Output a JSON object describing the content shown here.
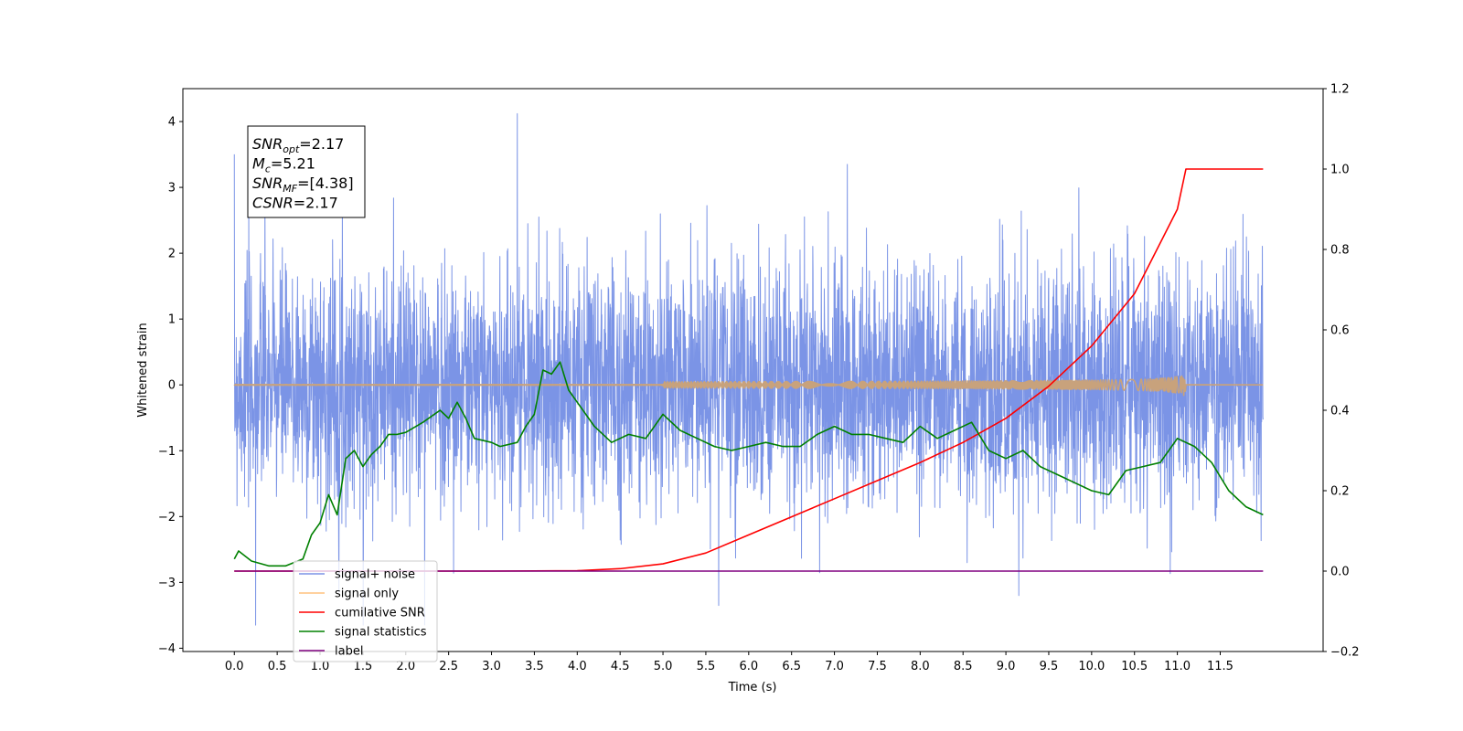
{
  "chart_data": {
    "type": "line",
    "title": "",
    "xlabel": "Time (s)",
    "ylabel": "Whitened strain",
    "y2label": "",
    "xlim": [
      -0.6,
      12.7
    ],
    "ylim": [
      -4.05,
      4.5
    ],
    "y2lim": [
      -0.2,
      1.2
    ],
    "xticks": [
      0.0,
      0.5,
      1.0,
      1.5,
      2.0,
      2.5,
      3.0,
      3.5,
      4.0,
      4.5,
      5.0,
      5.5,
      6.0,
      6.5,
      7.0,
      7.5,
      8.0,
      8.5,
      9.0,
      9.5,
      10.0,
      10.5,
      11.0,
      11.5
    ],
    "xtick_labels": [
      "0.0",
      "0.5",
      "1.0",
      "1.5",
      "2.0",
      "2.5",
      "3.0",
      "3.5",
      "4.0",
      "4.5",
      "5.0",
      "5.5",
      "6.0",
      "6.5",
      "7.0",
      "7.5",
      "8.0",
      "8.5",
      "9.0",
      "9.5",
      "10.0",
      "10.5",
      "11.0",
      "11.5"
    ],
    "yticks": [
      -4,
      -3,
      -2,
      -1,
      0,
      1,
      2,
      3,
      4
    ],
    "ytick_labels": [
      "−4",
      "−3",
      "−2",
      "−1",
      "0",
      "1",
      "2",
      "3",
      "4"
    ],
    "y2ticks": [
      -0.2,
      0.0,
      0.2,
      0.4,
      0.6,
      0.8,
      1.0,
      1.2
    ],
    "y2tick_labels": [
      "−0.2",
      "0.0",
      "0.2",
      "0.4",
      "0.6",
      "0.8",
      "1.0",
      "1.2"
    ],
    "grid": false,
    "legend_position": "lower-left",
    "series": [
      {
        "name": "signal+ noise",
        "color": "#7b94e6",
        "axis": "left",
        "kind": "noise",
        "x_range": [
          0.0,
          12.0
        ],
        "sigma": 0.9,
        "approx_min": -3.65,
        "approx_max": 4.12
      },
      {
        "name": "signal only",
        "color": "#ffc27f",
        "axis": "left",
        "kind": "chirp",
        "x_range": [
          0.0,
          11.1
        ],
        "peak_amplitude": 0.2
      },
      {
        "name": "cumilative SNR",
        "color": "#ff0000",
        "axis": "right",
        "x": [
          0.0,
          3.0,
          4.0,
          4.5,
          5.0,
          5.5,
          6.0,
          6.5,
          7.0,
          7.5,
          8.0,
          8.5,
          9.0,
          9.5,
          10.0,
          10.5,
          11.0,
          11.1,
          11.5,
          12.0
        ],
        "values": [
          0.0,
          0.0,
          0.001,
          0.006,
          0.018,
          0.045,
          0.09,
          0.135,
          0.18,
          0.225,
          0.27,
          0.32,
          0.38,
          0.46,
          0.56,
          0.69,
          0.9,
          1.0,
          1.0,
          1.0
        ]
      },
      {
        "name": "signal statistics",
        "color": "#008000",
        "axis": "right",
        "x": [
          0.0,
          0.05,
          0.2,
          0.4,
          0.6,
          0.8,
          0.9,
          1.0,
          1.1,
          1.2,
          1.3,
          1.4,
          1.5,
          1.6,
          1.7,
          1.8,
          1.9,
          2.0,
          2.2,
          2.4,
          2.5,
          2.6,
          2.7,
          2.8,
          3.0,
          3.1,
          3.3,
          3.4,
          3.5,
          3.6,
          3.7,
          3.8,
          3.9,
          4.0,
          4.2,
          4.4,
          4.6,
          4.8,
          5.0,
          5.2,
          5.4,
          5.6,
          5.8,
          6.0,
          6.2,
          6.4,
          6.6,
          6.8,
          7.0,
          7.2,
          7.4,
          7.6,
          7.8,
          8.0,
          8.2,
          8.4,
          8.6,
          8.8,
          9.0,
          9.2,
          9.4,
          9.6,
          9.8,
          10.0,
          10.2,
          10.4,
          10.6,
          10.8,
          11.0,
          11.2,
          11.4,
          11.6,
          11.8,
          12.0
        ],
        "values": [
          0.03,
          0.05,
          0.025,
          0.013,
          0.013,
          0.03,
          0.09,
          0.12,
          0.19,
          0.14,
          0.28,
          0.3,
          0.26,
          0.29,
          0.31,
          0.34,
          0.34,
          0.345,
          0.37,
          0.4,
          0.38,
          0.42,
          0.38,
          0.33,
          0.32,
          0.31,
          0.32,
          0.36,
          0.39,
          0.5,
          0.49,
          0.52,
          0.45,
          0.42,
          0.36,
          0.32,
          0.34,
          0.33,
          0.39,
          0.35,
          0.33,
          0.31,
          0.3,
          0.31,
          0.32,
          0.31,
          0.31,
          0.34,
          0.36,
          0.34,
          0.34,
          0.33,
          0.32,
          0.36,
          0.33,
          0.35,
          0.37,
          0.3,
          0.28,
          0.3,
          0.26,
          0.24,
          0.22,
          0.2,
          0.19,
          0.25,
          0.26,
          0.27,
          0.33,
          0.31,
          0.27,
          0.2,
          0.16,
          0.14
        ]
      },
      {
        "name": "label",
        "color": "#800080",
        "axis": "right",
        "x": [
          0.0,
          12.0
        ],
        "values": [
          0.0,
          0.0
        ]
      }
    ],
    "annotations": [
      {
        "id": "snr-opt",
        "base": "SNR",
        "sub": "opt",
        "value": "=2.17"
      },
      {
        "id": "mc",
        "base": "M",
        "sub": "c",
        "value": "=5.21"
      },
      {
        "id": "snr-mf",
        "base": "SNR",
        "sub": "MF",
        "value": "=[4.38]"
      },
      {
        "id": "csnr",
        "base": "CSNR",
        "sub": "",
        "value": "=2.17"
      }
    ]
  }
}
